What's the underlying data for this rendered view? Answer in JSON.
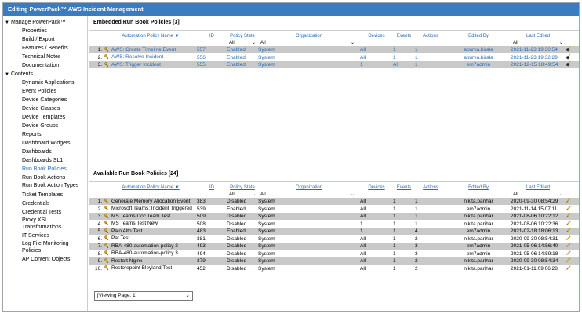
{
  "title": "Editing PowerPack™   AWS Incident Management",
  "sidebar": {
    "manage_label": "Manage PowerPack™",
    "manage_items": [
      "Properties",
      "Build / Export",
      "Features / Benefits",
      "Technical Notes",
      "Documentation"
    ],
    "contents_label": "Contents",
    "contents_items": [
      "Dynamic Applications",
      "Event Policies",
      "Device Categories",
      "Device Classes",
      "Device Templates",
      "Device Groups",
      "Reports",
      "Dashboard Widgets",
      "Dashboards",
      "Dashboards SL1",
      "Run Book Policies",
      "Run Book Actions",
      "Run Book Action Types",
      "Ticket Templates",
      "Credentials",
      "Credential Tests",
      "Proxy XSL Transformations",
      "IT Services",
      "Log File Monitoring Policies",
      "AP Content Objects"
    ],
    "active_item": "Run Book Policies"
  },
  "embedded": {
    "title": "Embedded Run Book Policies [3]",
    "columns": [
      "Automation Policy Name ▼",
      "ID",
      "Policy State",
      "Organization",
      "Devices",
      "Events",
      "Actions",
      "Edited By",
      "Last Edited"
    ],
    "filters": {
      "state": "All",
      "org": "All",
      "last_edited": "All"
    },
    "rows": [
      {
        "n": "1.",
        "name": "AWS: Create Timeline Event",
        "id": "557",
        "state": "Enabled",
        "org": "System",
        "devices": "All",
        "events": "1",
        "actions": "1",
        "by": "apurva.birala",
        "date": "2021-11-23 19:30:54"
      },
      {
        "n": "2.",
        "name": "AWS: Resolve Incident",
        "id": "556",
        "state": "Enabled",
        "org": "System",
        "devices": "All",
        "events": "1",
        "actions": "1",
        "by": "apurva.birala",
        "date": "2021-11-23 19:32:29"
      },
      {
        "n": "3.",
        "name": "AWS: Trigger Incident",
        "id": "555",
        "state": "Enabled",
        "org": "System",
        "devices": "1",
        "events": "All",
        "actions": "1",
        "by": "em7admin",
        "date": "2021-12-15 18:49:54"
      }
    ]
  },
  "available": {
    "title": "Available Run Book Policies [24]",
    "columns": [
      "Automation Policy Name ▼",
      "ID",
      "Policy State",
      "Organization",
      "Devices",
      "Events",
      "Actions",
      "Edited By",
      "Last Edited"
    ],
    "filters": {
      "state": "All",
      "org": "All",
      "last_edited": "All"
    },
    "rows": [
      {
        "n": "1.",
        "name": "Generate Memory Allocation Event",
        "id": "383",
        "state": "Disabled",
        "org": "System",
        "devices": "All",
        "events": "1",
        "actions": "1",
        "by": "nikita.parihar",
        "date": "2020-09-30 08:54:29"
      },
      {
        "n": "2.",
        "name": "Microsoft Teams: Incident Triggered",
        "id": "539",
        "state": "Enabled",
        "org": "System",
        "devices": "All",
        "events": "1",
        "actions": "1",
        "by": "em7admin",
        "date": "2021-11-14 15:07:11"
      },
      {
        "n": "3.",
        "name": "MS Teams Doc Team Test",
        "id": "509",
        "state": "Disabled",
        "org": "System",
        "devices": "All",
        "events": "1",
        "actions": "1",
        "by": "nikita.parihar",
        "date": "2021-08-06 10:22:12"
      },
      {
        "n": "4.",
        "name": "MS Teams Test New",
        "id": "508",
        "state": "Disabled",
        "org": "System",
        "devices": "1",
        "events": "1",
        "actions": "1",
        "by": "nikita.parihar",
        "date": "2021-08-06 10:22:36"
      },
      {
        "n": "5.",
        "name": "Palo Alto Test",
        "id": "483",
        "state": "Enabled",
        "org": "System",
        "devices": "1",
        "events": "1",
        "actions": "4",
        "by": "em7admin",
        "date": "2021-02-18 18:06:13"
      },
      {
        "n": "6.",
        "name": "Pat Test",
        "id": "381",
        "state": "Disabled",
        "org": "System",
        "devices": "All",
        "events": "1",
        "actions": "2",
        "by": "nikita.parihar",
        "date": "2020-09-30 08:54:31"
      },
      {
        "n": "7.",
        "name": "RBA-480-automation-policy 2",
        "id": "493",
        "state": "Disabled",
        "org": "System",
        "devices": "All",
        "events": "1",
        "actions": "3",
        "by": "em7admin",
        "date": "2021-05-06 14:56:40"
      },
      {
        "n": "8.",
        "name": "RBA-480-automation-policy 3",
        "id": "494",
        "state": "Disabled",
        "org": "System",
        "devices": "All",
        "events": "1",
        "actions": "3",
        "by": "em7admin",
        "date": "2021-05-06 14:59:18"
      },
      {
        "n": "9.",
        "name": "Restart Nginx",
        "id": "379",
        "state": "Disabled",
        "org": "System",
        "devices": "All",
        "events": "1",
        "actions": "2",
        "by": "nikita.parihar",
        "date": "2020-09-30 08:54:34"
      },
      {
        "n": "10.",
        "name": "Restorepoint Bleyland Test",
        "id": "452",
        "state": "Disabled",
        "org": "System",
        "devices": "All",
        "events": "1",
        "actions": "2",
        "by": "nikita.parihar",
        "date": "2021-01-11 09:06:28"
      }
    ]
  },
  "pager": {
    "label": "[Viewing Page: 1]"
  },
  "colors": {
    "titlebar": "#3b7bbf",
    "link": "#2a6bb3",
    "row_shade": "#c9c9c9"
  }
}
